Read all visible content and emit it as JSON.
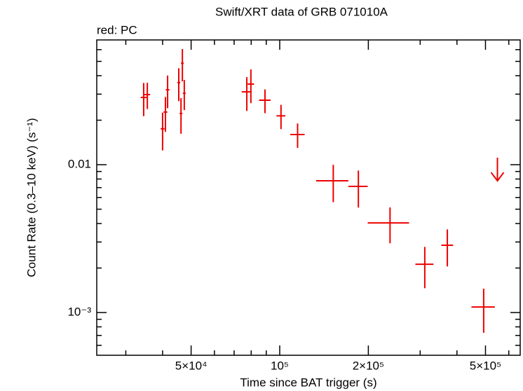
{
  "chart_data": {
    "type": "scatter",
    "title": "Swift/XRT data of GRB 071010A",
    "subtitle": "red: PC",
    "x_label": "Time since BAT trigger (s)",
    "y_label": "Count Rate (0.3–10 keV) (s⁻¹)",
    "xlog": true,
    "ylog": true,
    "xlim": [
      23900,
      656000
    ],
    "ylim": [
      0.000514,
      0.0698
    ],
    "xticks": [
      {
        "value": 50000,
        "label": "5×10⁴"
      },
      {
        "value": 100000,
        "label": "10⁵"
      },
      {
        "value": 200000,
        "label": "2×10⁵"
      },
      {
        "value": 500000,
        "label": "5×10⁵"
      }
    ],
    "xminor": [
      30000,
      40000,
      60000,
      70000,
      80000,
      90000,
      300000,
      400000,
      600000
    ],
    "yticks": [
      {
        "value": 0.001,
        "label": "10⁻³"
      },
      {
        "value": 0.01,
        "label": "0.01"
      }
    ],
    "yminor": [
      0.0006,
      0.0007,
      0.0008,
      0.0009,
      0.002,
      0.003,
      0.004,
      0.005,
      0.006,
      0.007,
      0.008,
      0.009,
      0.02,
      0.03,
      0.04,
      0.05,
      0.06
    ],
    "series": [
      {
        "name": "PC",
        "color": "#ee0000",
        "x": [
          34500,
          35500,
          40000,
          40900,
          41600,
          45400,
          46200,
          46700,
          47400,
          77300,
          79800,
          89100,
          101000,
          115000,
          152000,
          185000,
          237000,
          311000,
          371000,
          493000
        ],
        "xerr": [
          800,
          800,
          600,
          600,
          600,
          500,
          500,
          500,
          500,
          3000,
          2000,
          4000,
          3500,
          6500,
          19000,
          14000,
          38000,
          22000,
          17000,
          45000
        ],
        "values": [
          0.0285,
          0.0298,
          0.0175,
          0.0227,
          0.0321,
          0.0359,
          0.0222,
          0.0486,
          0.0304,
          0.0311,
          0.0351,
          0.0273,
          0.0214,
          0.016,
          0.00778,
          0.00713,
          0.00404,
          0.00212,
          0.00285,
          0.00109
        ],
        "yerr": [
          0.0072,
          0.006,
          0.005,
          0.006,
          0.008,
          0.009,
          0.006,
          0.012,
          0.007,
          0.008,
          0.009,
          0.005,
          0.004,
          0.003,
          0.0022,
          0.002,
          0.0011,
          0.00066,
          0.0008,
          0.00036
        ]
      }
    ],
    "upper_limits": {
      "color": "#ee0000",
      "x": [
        549000
      ],
      "values": [
        0.00778
      ]
    }
  }
}
